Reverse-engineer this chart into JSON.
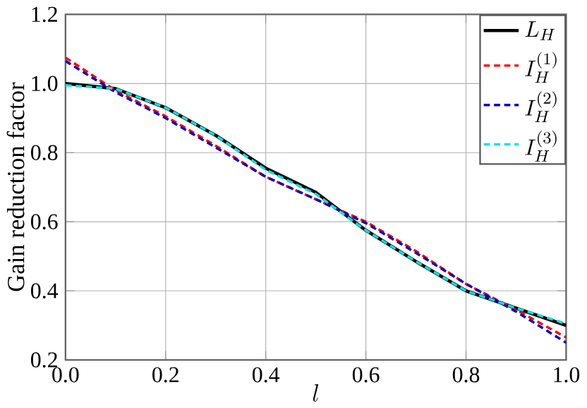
{
  "chart_data": {
    "type": "line",
    "xlabel": "l",
    "ylabel": "Gain reduction factor",
    "x": [
      0,
      0.1,
      0.2,
      0.3,
      0.4,
      0.5,
      0.6,
      0.7,
      0.8,
      0.9,
      1.0
    ],
    "series": [
      {
        "name": "L_H",
        "color": "#000000",
        "line_style": "solid",
        "values": [
          1.0,
          0.985,
          0.93,
          0.85,
          0.755,
          0.685,
          0.575,
          0.485,
          0.4,
          0.35,
          0.3
        ]
      },
      {
        "name": "I_H^{(1)}",
        "color": "#ff0000",
        "line_style": "dashed",
        "values": [
          1.075,
          0.98,
          0.905,
          0.82,
          0.73,
          0.665,
          0.6,
          0.515,
          0.42,
          0.345,
          0.265
        ]
      },
      {
        "name": "I_H^{(2)}",
        "color": "#0000cc",
        "line_style": "dashed",
        "values": [
          1.065,
          0.975,
          0.9,
          0.815,
          0.73,
          0.665,
          0.596,
          0.51,
          0.42,
          0.34,
          0.25
        ]
      },
      {
        "name": "I_H^{(3)}",
        "color": "#00e5e5",
        "line_style": "dashed",
        "values": [
          0.995,
          0.985,
          0.93,
          0.85,
          0.75,
          0.68,
          0.575,
          0.485,
          0.4,
          0.35,
          0.305
        ]
      }
    ],
    "xlim": [
      0,
      1.0
    ],
    "ylim": [
      0.2,
      1.2
    ],
    "xticks": [
      {
        "value": 0,
        "label": "0.0"
      },
      0.2,
      0.4,
      0.6,
      0.8,
      {
        "value": 1.0,
        "label": "1.0"
      }
    ],
    "yticks": [
      0.2,
      0.4,
      0.6,
      0.8,
      {
        "value": 1.0,
        "label": "1.0"
      },
      1.2
    ],
    "grid": true,
    "legend": "top right"
  }
}
